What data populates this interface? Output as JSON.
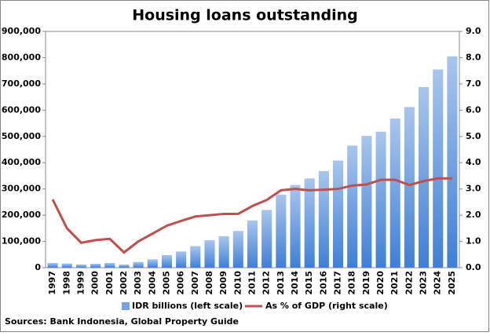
{
  "chart_data": {
    "type": "bar",
    "title": "Housing loans outstanding",
    "source": "Sources: Bank Indonesia, Global Property Guide",
    "categories": [
      "1997",
      "1998",
      "1999",
      "2000",
      "2001",
      "2002",
      "2003",
      "2004",
      "2005",
      "2006",
      "2007",
      "2008",
      "2009",
      "2010",
      "2011",
      "2012",
      "2013",
      "2014",
      "2015",
      "2016",
      "2017",
      "2018",
      "2019",
      "2020",
      "2021",
      "2022",
      "2023",
      "2024",
      "2025"
    ],
    "series": [
      {
        "name": "IDR billions (left scale)",
        "type": "bar",
        "color": "#3f7fd6",
        "values": [
          18000,
          16000,
          12000,
          15000,
          18000,
          12000,
          22000,
          32000,
          48000,
          62000,
          82000,
          105000,
          120000,
          140000,
          180000,
          220000,
          278000,
          315000,
          340000,
          368000,
          408000,
          465000,
          502000,
          518000,
          568000,
          612000,
          688000,
          755000,
          805000
        ]
      },
      {
        "name": "As % of GDP (right scale)",
        "type": "line",
        "axis": "y2",
        "color": "#c0504d",
        "values": [
          2.6,
          1.5,
          0.95,
          1.05,
          1.1,
          0.58,
          1.0,
          1.3,
          1.6,
          1.78,
          1.95,
          2.0,
          2.05,
          2.05,
          2.35,
          2.58,
          2.95,
          3.0,
          2.95,
          2.97,
          3.0,
          3.13,
          3.17,
          3.35,
          3.35,
          3.15,
          3.3,
          3.4,
          3.4
        ]
      }
    ],
    "ylim": [
      0,
      900000
    ],
    "yticks": [
      0,
      {
        "value": 100000,
        "label": "100,000"
      },
      {
        "value": 200000,
        "label": "200,000"
      },
      {
        "value": 300000,
        "label": "300,000"
      },
      {
        "value": 400000,
        "label": "400,000"
      },
      {
        "value": 500000,
        "label": "500,000"
      },
      {
        "value": 600000,
        "label": "600,000"
      },
      {
        "value": 700000,
        "label": "700,000"
      },
      {
        "value": 800000,
        "label": "800,000"
      },
      {
        "value": 900000,
        "label": "900,000"
      }
    ],
    "y2lim": [
      0,
      9
    ],
    "y2ticks": [
      {
        "value": 0,
        "label": "0.0"
      },
      {
        "value": 1,
        "label": "1.0"
      },
      {
        "value": 2,
        "label": "2.0"
      },
      {
        "value": 3,
        "label": "3.0"
      },
      {
        "value": 4,
        "label": "4.0"
      },
      {
        "value": 5,
        "label": "5.0"
      },
      {
        "value": 6,
        "label": "6.0"
      },
      {
        "value": 7,
        "label": "7.0"
      },
      {
        "value": 8,
        "label": "8.0"
      },
      {
        "value": 9,
        "label": "9.0"
      }
    ],
    "legend": "bottom"
  }
}
